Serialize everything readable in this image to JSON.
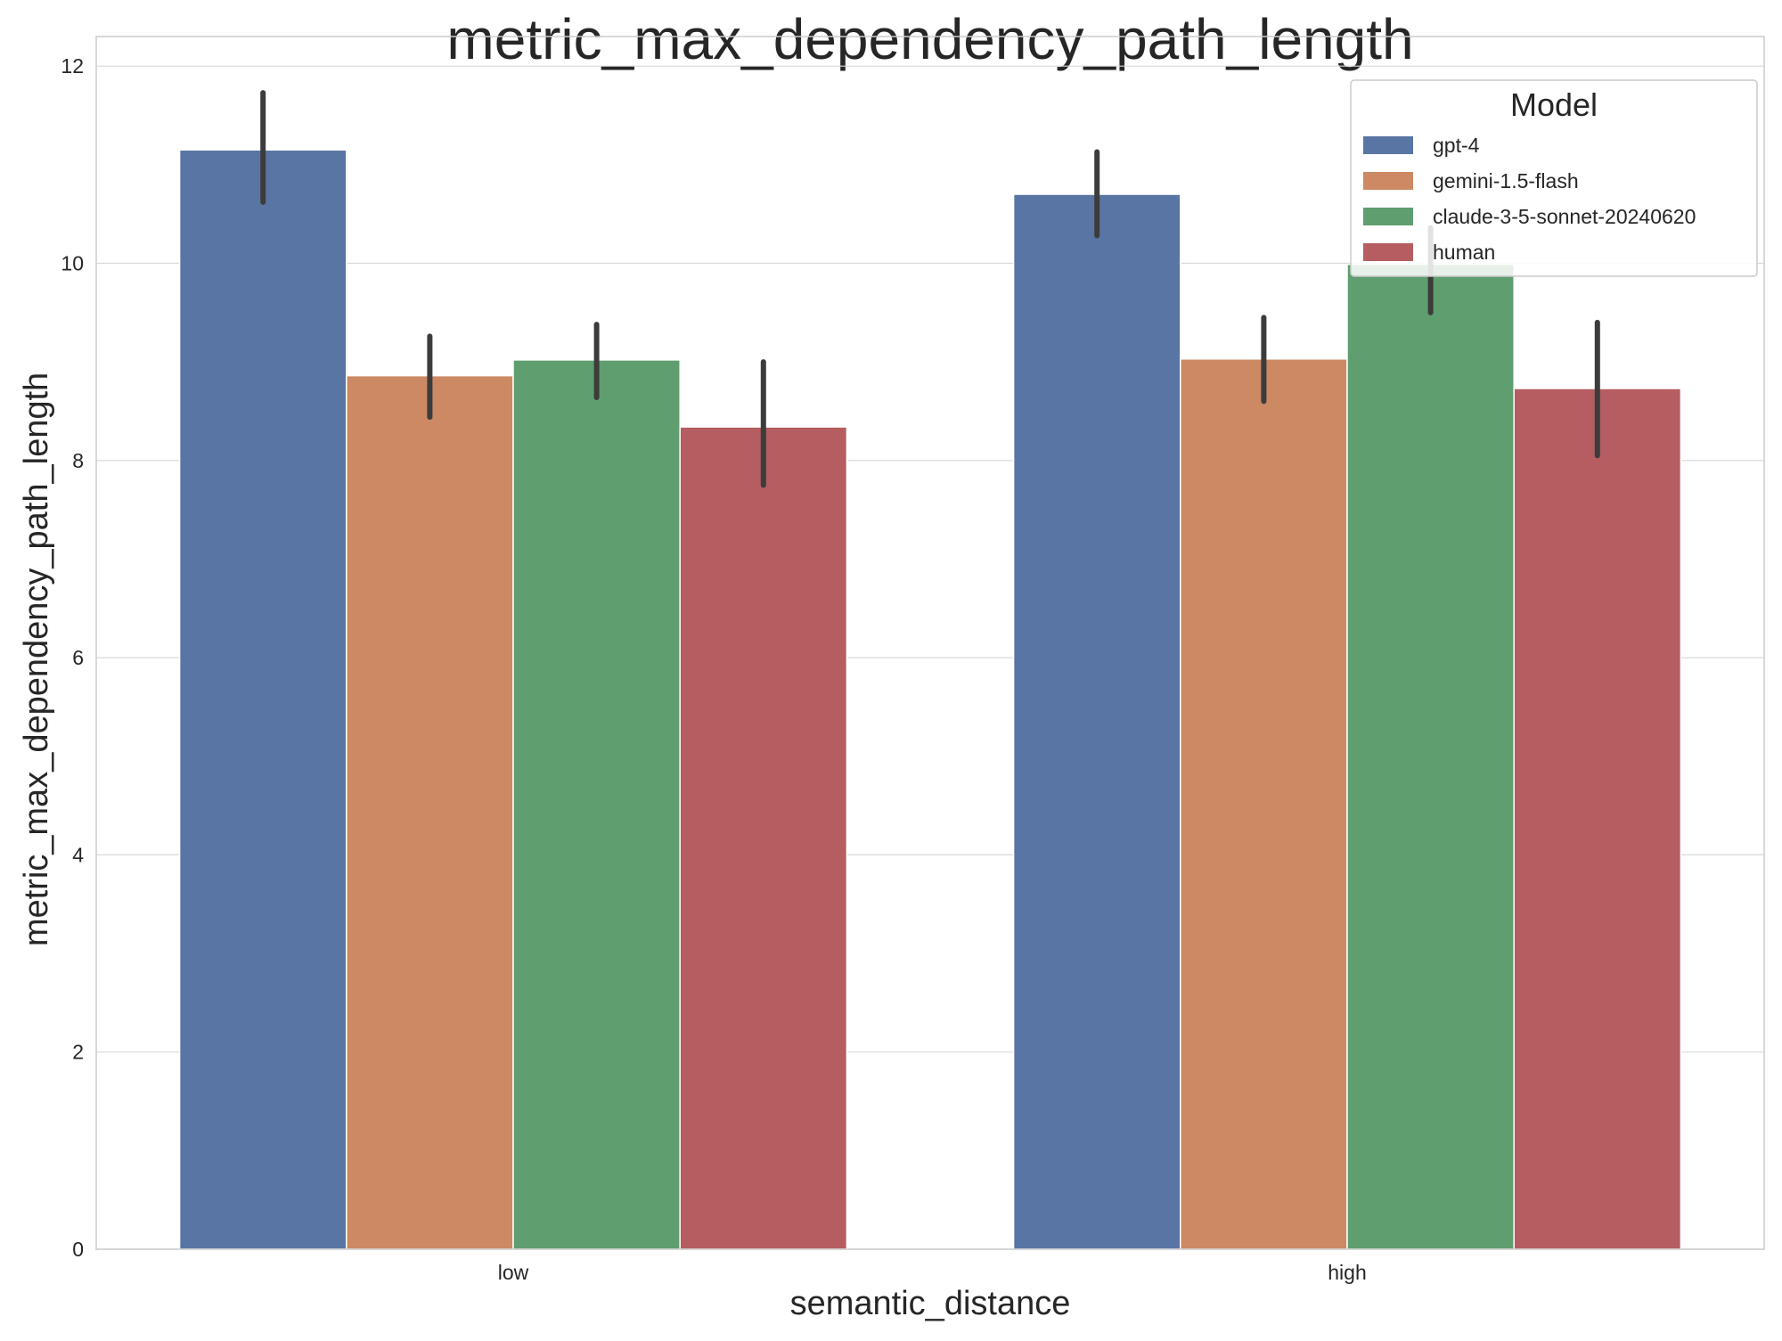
{
  "chart_data": {
    "type": "bar",
    "title": "metric_max_dependency_path_length",
    "xlabel": "semantic_distance",
    "ylabel": "metric_max_dependency_path_length",
    "categories": [
      "low",
      "high"
    ],
    "ylim": [
      0,
      12.3
    ],
    "yticks": [
      0,
      2,
      4,
      6,
      8,
      10,
      12
    ],
    "grid": true,
    "legend": {
      "title": "Model",
      "placement": "top-right"
    },
    "series": [
      {
        "name": "gpt-4",
        "color": "#5975a4",
        "values": [
          11.15,
          10.7
        ],
        "ci_low": [
          10.62,
          10.28
        ],
        "ci_high": [
          11.73,
          11.13
        ]
      },
      {
        "name": "gemini-1.5-flash",
        "color": "#cc8963",
        "values": [
          8.86,
          9.03
        ],
        "ci_low": [
          8.44,
          8.6
        ],
        "ci_high": [
          9.26,
          9.45
        ]
      },
      {
        "name": "claude-3-5-sonnet-20240620",
        "color": "#5f9e6e",
        "values": [
          9.02,
          9.99
        ],
        "ci_low": [
          8.64,
          9.5
        ],
        "ci_high": [
          9.38,
          10.36
        ]
      },
      {
        "name": "human",
        "color": "#b55d60",
        "values": [
          8.34,
          8.73
        ],
        "ci_low": [
          7.75,
          8.05
        ],
        "ci_high": [
          9.0,
          9.4
        ]
      }
    ]
  }
}
